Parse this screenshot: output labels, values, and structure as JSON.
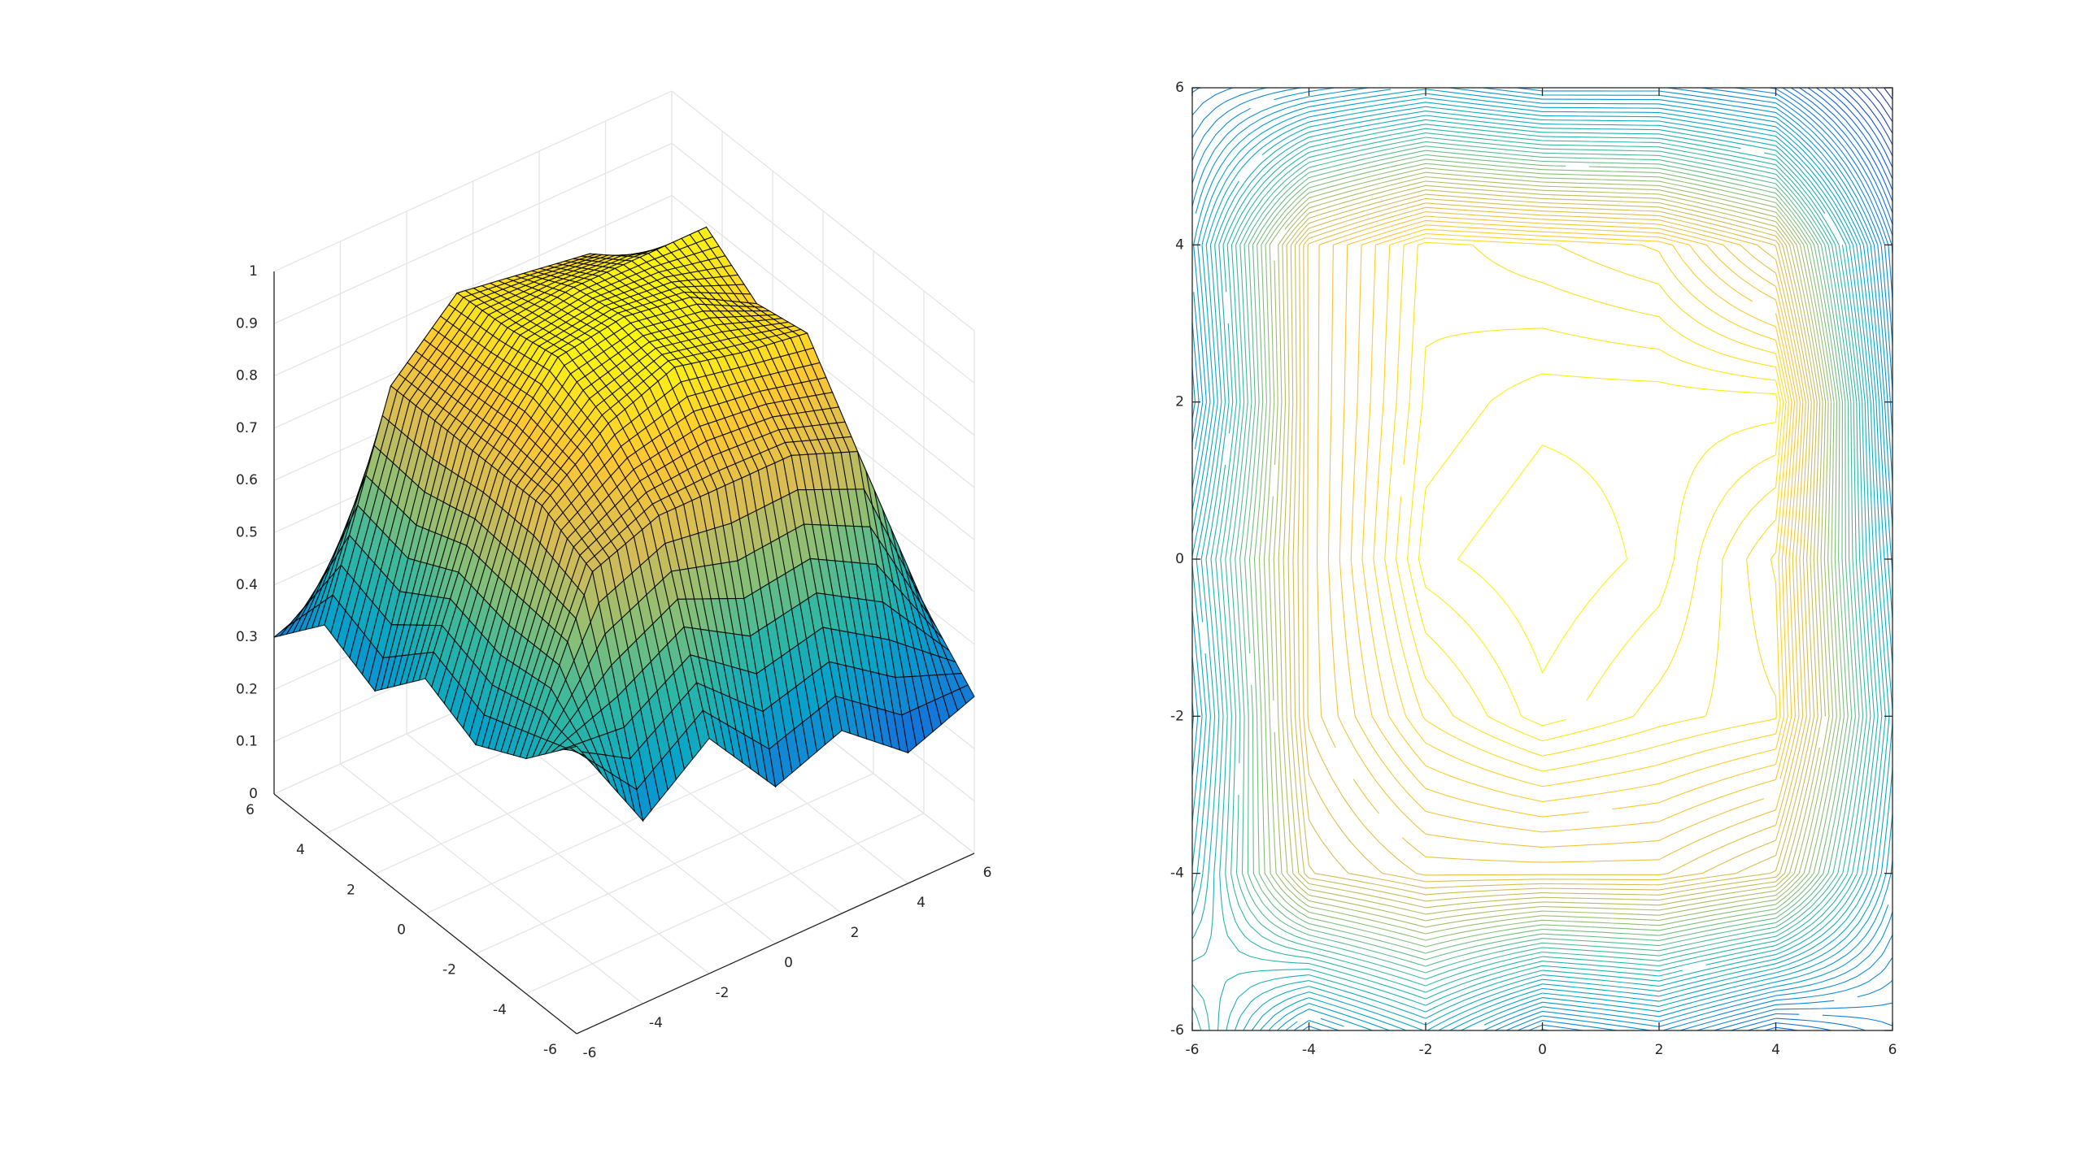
{
  "chart_data": [
    {
      "type": "surface",
      "x": [
        -6,
        -4,
        -2,
        0,
        2,
        4,
        6
      ],
      "y": [
        -6,
        -4,
        -2,
        0,
        2,
        4,
        6
      ],
      "z": [
        [
          0.55,
          0.35,
          0.45,
          0.3,
          0.35,
          0.25,
          0.3
        ],
        [
          0.45,
          0.75,
          0.8,
          0.8,
          0.8,
          0.75,
          0.4
        ],
        [
          0.4,
          0.8,
          0.9,
          0.95,
          0.92,
          0.9,
          0.45
        ],
        [
          0.45,
          0.8,
          0.95,
          0.97,
          0.95,
          0.88,
          0.4
        ],
        [
          0.35,
          0.8,
          0.93,
          0.95,
          0.95,
          0.95,
          0.35
        ],
        [
          0.4,
          0.8,
          0.92,
          0.9,
          0.88,
          0.78,
          0.3
        ],
        [
          0.3,
          0.35,
          0.4,
          0.35,
          0.35,
          0.3,
          0.1
        ]
      ],
      "xlim": [
        -6,
        6
      ],
      "ylim": [
        -6,
        6
      ],
      "zlim": [
        0,
        1
      ],
      "xticks": [
        -6,
        -4,
        -2,
        0,
        2,
        4,
        6
      ],
      "yticks": [
        -6,
        -4,
        -2,
        0,
        2,
        4,
        6
      ],
      "zticks": [
        0,
        0.1,
        0.2,
        0.3,
        0.4,
        0.5,
        0.6,
        0.7,
        0.8,
        0.9,
        1
      ],
      "grid": true
    },
    {
      "type": "contour",
      "x": [
        -6,
        -4,
        -2,
        0,
        2,
        4,
        6
      ],
      "y": [
        -6,
        -4,
        -2,
        0,
        2,
        4,
        6
      ],
      "z": [
        [
          0.55,
          0.35,
          0.45,
          0.3,
          0.35,
          0.25,
          0.3
        ],
        [
          0.45,
          0.75,
          0.8,
          0.8,
          0.8,
          0.75,
          0.4
        ],
        [
          0.4,
          0.8,
          0.9,
          0.95,
          0.92,
          0.9,
          0.45
        ],
        [
          0.45,
          0.8,
          0.95,
          0.97,
          0.95,
          0.88,
          0.4
        ],
        [
          0.35,
          0.8,
          0.93,
          0.95,
          0.95,
          0.95,
          0.35
        ],
        [
          0.4,
          0.8,
          0.92,
          0.9,
          0.88,
          0.78,
          0.3
        ],
        [
          0.3,
          0.35,
          0.4,
          0.35,
          0.35,
          0.3,
          0.1
        ]
      ],
      "xlim": [
        -6,
        6
      ],
      "ylim": [
        -6,
        6
      ],
      "xticks": [
        -6,
        -4,
        -2,
        0,
        2,
        4,
        6
      ],
      "yticks": [
        -6,
        -4,
        -2,
        0,
        2,
        4,
        6
      ]
    }
  ]
}
